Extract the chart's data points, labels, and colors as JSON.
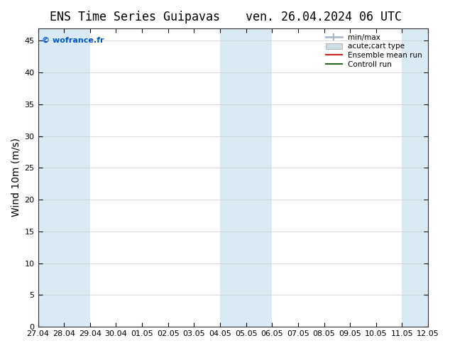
{
  "title_left": "ENS Time Series Guipavas",
  "title_right": "ven. 26.04.2024 06 UTC",
  "ylabel": "Wind 10m (m/s)",
  "watermark": "© wofrance.fr",
  "bg_color": "#ffffff",
  "plot_bg_color": "#ffffff",
  "shaded_band_color": "#daeaf5",
  "ylim": [
    0,
    47
  ],
  "yticks": [
    0,
    5,
    10,
    15,
    20,
    25,
    30,
    35,
    40,
    45
  ],
  "xtick_labels": [
    "27.04",
    "28.04",
    "29.04",
    "30.04",
    "01.05",
    "02.05",
    "03.05",
    "04.05",
    "05.05",
    "06.05",
    "07.05",
    "08.05",
    "09.05",
    "10.05",
    "11.05",
    "12.05"
  ],
  "shaded_regions": [
    [
      "27.04",
      "29.04"
    ],
    [
      "04.05",
      "06.05"
    ],
    [
      "11.05",
      "12.05"
    ]
  ],
  "legend_entries": [
    {
      "label": "min/max",
      "color": "#aabbcc",
      "type": "hline"
    },
    {
      "label": "acute;cart type",
      "color": "#ccdde8",
      "type": "bar"
    },
    {
      "label": "Ensemble mean run",
      "color": "#cc2222",
      "type": "line"
    },
    {
      "label": "Controll run",
      "color": "#226622",
      "type": "line"
    }
  ],
  "title_fontsize": 12,
  "axis_fontsize": 10,
  "tick_fontsize": 8,
  "watermark_color": "#0055cc",
  "grid_color": "#cccccc"
}
